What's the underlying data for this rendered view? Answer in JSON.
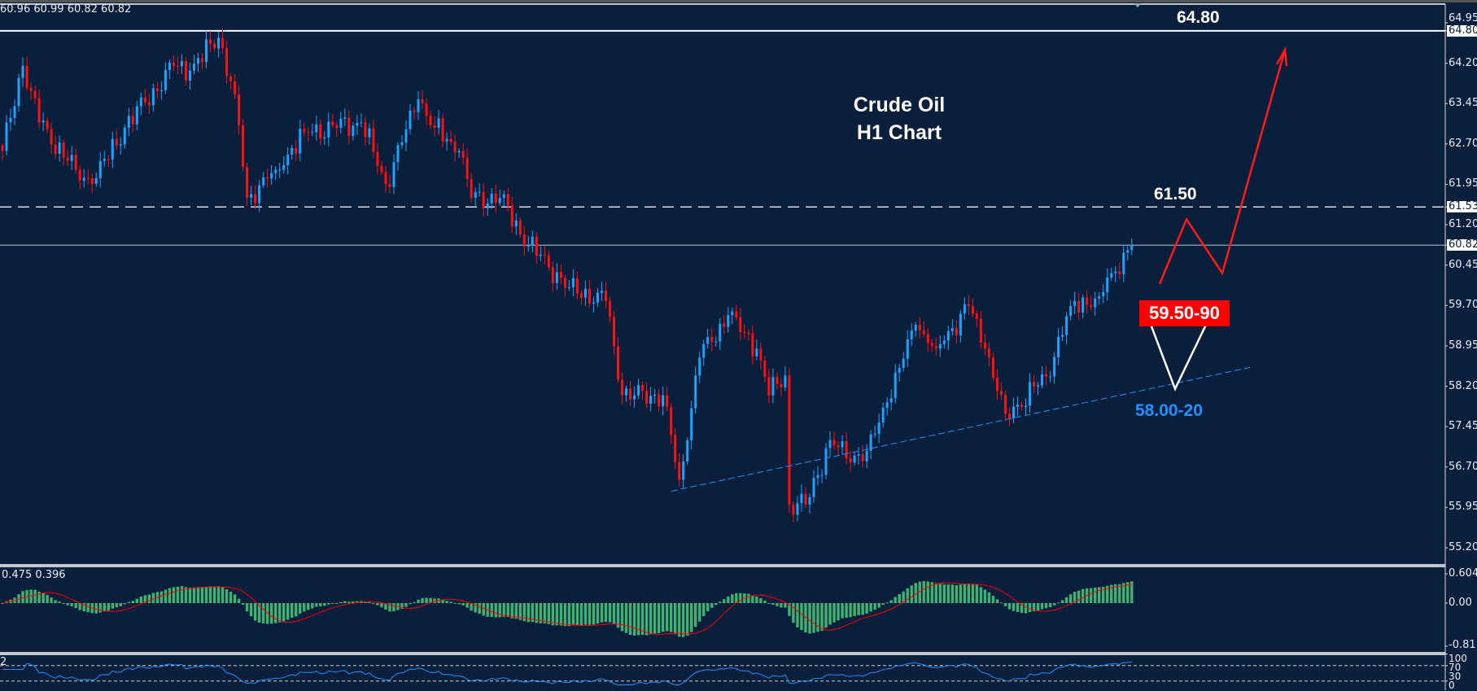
{
  "header": {
    "ohlc_readout": "60.96 60.99 60.82 60.82"
  },
  "annotations": {
    "title_line1": "Crude Oil",
    "title_line2": "H1 Chart",
    "resistance_high": "64.80",
    "resistance_mid": "61.50",
    "buy_zone": "59.50-90",
    "support_zone": "58.00-20"
  },
  "colors": {
    "background": "#0a1f3b",
    "bull_candle": "#1aa3ff",
    "bear_candle": "#ff1010",
    "macd_histogram": "#3cb371",
    "macd_signal": "#ff0000",
    "rsi_line": "#1e90ff",
    "trendline": "#1e90ff",
    "projection_red": "#ff1a1a",
    "projection_white": "#ffffff"
  },
  "chart_data": {
    "type": "candlestick",
    "symbol": "Crude Oil",
    "timeframe": "H1",
    "ylim": [
      55.2,
      64.95
    ],
    "y_ticks": [
      "64.95",
      "64.20",
      "63.45",
      "62.70",
      "61.95",
      "61.20",
      "60.45",
      "59.70",
      "58.95",
      "58.20",
      "57.45",
      "56.70",
      "55.95",
      "55.20"
    ],
    "price_markers": [
      "64.80",
      "61.53",
      "60.82"
    ],
    "horizontal_lines": [
      {
        "price": 64.8,
        "style": "solid"
      },
      {
        "price": 61.53,
        "style": "dashed"
      },
      {
        "price": 60.82,
        "style": "solid-gray"
      }
    ],
    "trendline": {
      "from": [
        164,
        56.25
      ],
      "to": [
        306,
        58.55
      ],
      "style": "dashed"
    },
    "close_anchors": [
      [
        0,
        62.57
      ],
      [
        5,
        64.15
      ],
      [
        9,
        63.1
      ],
      [
        18,
        62.22
      ],
      [
        22,
        61.96
      ],
      [
        30,
        63.0
      ],
      [
        42,
        64.15
      ],
      [
        46,
        64.06
      ],
      [
        53,
        64.67
      ],
      [
        57,
        63.62
      ],
      [
        60,
        61.7
      ],
      [
        67,
        62.22
      ],
      [
        74,
        62.92
      ],
      [
        88,
        63.1
      ],
      [
        94,
        61.96
      ],
      [
        102,
        63.53
      ],
      [
        106,
        63.0
      ],
      [
        112,
        62.57
      ],
      [
        115,
        61.7
      ],
      [
        122,
        61.7
      ],
      [
        129,
        60.83
      ],
      [
        139,
        60.04
      ],
      [
        148,
        59.78
      ],
      [
        152,
        58.03
      ],
      [
        162,
        58.03
      ],
      [
        166,
        56.46
      ],
      [
        171,
        58.73
      ],
      [
        178,
        59.52
      ],
      [
        185,
        58.9
      ],
      [
        188,
        58.03
      ],
      [
        192,
        58.4
      ],
      [
        193,
        56.0
      ],
      [
        197,
        56.0
      ],
      [
        203,
        57.2
      ],
      [
        207,
        56.86
      ],
      [
        212,
        57.0
      ],
      [
        217,
        57.9
      ],
      [
        224,
        59.34
      ],
      [
        229,
        58.9
      ],
      [
        237,
        59.69
      ],
      [
        241,
        58.9
      ],
      [
        246,
        57.69
      ],
      [
        249,
        57.86
      ],
      [
        256,
        58.38
      ],
      [
        262,
        59.69
      ],
      [
        269,
        59.87
      ],
      [
        272,
        60.3
      ],
      [
        277,
        60.82
      ]
    ],
    "macd": {
      "readout": "0.475 0.396",
      "y_ticks": [
        "0.604",
        "0.00",
        "-0.811"
      ],
      "ylim": [
        -0.811,
        0.604
      ]
    },
    "rsi": {
      "readout": "2",
      "y_ticks": [
        "100",
        "70",
        "30",
        "0"
      ],
      "levels": [
        70,
        30
      ]
    },
    "projections": {
      "red_path_prices": [
        60.1,
        61.3,
        60.3,
        64.45
      ],
      "white_path_prices": [
        59.55,
        58.15,
        59.5
      ]
    }
  }
}
